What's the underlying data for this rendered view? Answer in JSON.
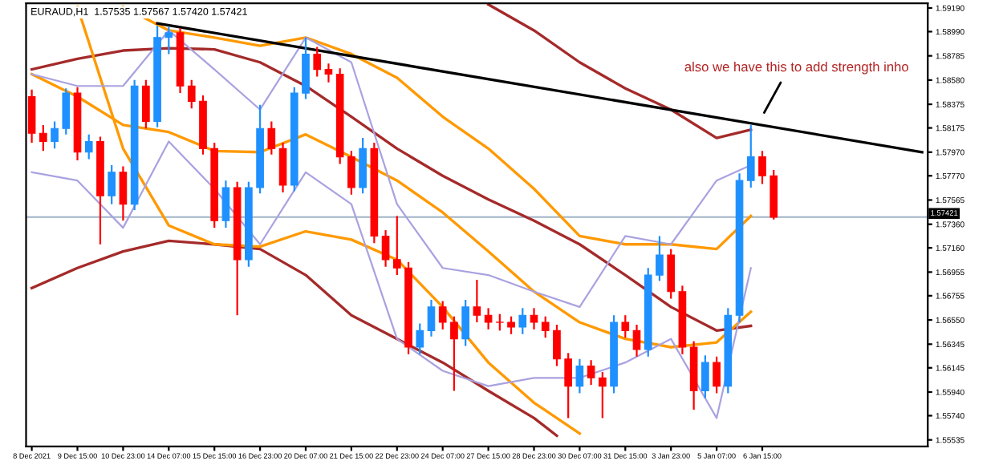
{
  "chart_data": {
    "type": "candlestick",
    "title": "EURAUD,H1  1.57535 1.57567 1.57420 1.57421",
    "categories": [
      "8 Dec 2021",
      null,
      null,
      null,
      "9 Dec 15:00",
      null,
      null,
      null,
      "10 Dec 23:00",
      null,
      null,
      null,
      "14 Dec 07:00",
      null,
      null,
      null,
      "15 Dec 15:00",
      null,
      null,
      null,
      "16 Dec 23:00",
      null,
      null,
      null,
      "20 Dec 07:00",
      null,
      null,
      null,
      "21 Dec 15:00",
      null,
      null,
      null,
      "22 Dec 23:00",
      null,
      null,
      null,
      "24 Dec 07:00",
      null,
      null,
      null,
      "27 Dec 15:00",
      null,
      null,
      null,
      "28 Dec 23:00",
      null,
      null,
      null,
      "30 Dec 07:00",
      null,
      null,
      null,
      "31 Dec 15:00",
      null,
      null,
      null,
      "3 Jan 23:00",
      null,
      null,
      null,
      "5 Jan 07:00",
      null,
      null,
      null,
      "6 Jan 15:00",
      null,
      null,
      null,
      null,
      null,
      null,
      null,
      null,
      null,
      null,
      null,
      null,
      null,
      null
    ],
    "ohlc": [
      [
        1.5844,
        1.585,
        1.5805,
        1.5813
      ],
      [
        1.5813,
        1.582,
        1.5798,
        1.5806
      ],
      [
        1.5806,
        1.5823,
        1.58,
        1.5817
      ],
      [
        1.5817,
        1.5851,
        1.5812,
        1.5847
      ],
      [
        1.5847,
        1.5852,
        1.579,
        1.5797
      ],
      [
        1.5797,
        1.5812,
        1.5791,
        1.5806
      ],
      [
        1.5806,
        1.581,
        1.5719,
        1.576
      ],
      [
        1.576,
        1.5786,
        1.5753,
        1.578
      ],
      [
        1.578,
        1.5785,
        1.5739,
        1.5753
      ],
      [
        1.5753,
        1.5858,
        1.5748,
        1.5853
      ],
      [
        1.5853,
        1.5858,
        1.5817,
        1.5823
      ],
      [
        1.5823,
        1.5904,
        1.5818,
        1.5894
      ],
      [
        1.5894,
        1.5903,
        1.588,
        1.5898
      ],
      [
        1.5898,
        1.5902,
        1.5847,
        1.5853
      ],
      [
        1.5853,
        1.5858,
        1.5834,
        1.584
      ],
      [
        1.584,
        1.5845,
        1.5795,
        1.58
      ],
      [
        1.58,
        1.5805,
        1.5733,
        1.5739
      ],
      [
        1.5739,
        1.5773,
        1.5733,
        1.5767
      ],
      [
        1.5767,
        1.5772,
        1.5659,
        1.5706
      ],
      [
        1.5706,
        1.5772,
        1.57,
        1.5767
      ],
      [
        1.5767,
        1.5837,
        1.5762,
        1.5817
      ],
      [
        1.5817,
        1.5823,
        1.5795,
        1.58
      ],
      [
        1.58,
        1.5805,
        1.5763,
        1.5769
      ],
      [
        1.5769,
        1.5852,
        1.5764,
        1.5847
      ],
      [
        1.5847,
        1.5894,
        1.5842,
        1.588
      ],
      [
        1.588,
        1.5886,
        1.5861,
        1.5867
      ],
      [
        1.5867,
        1.5872,
        1.5856,
        1.5863
      ],
      [
        1.5863,
        1.5868,
        1.5787,
        1.5793
      ],
      [
        1.5793,
        1.5798,
        1.5761,
        1.5767
      ],
      [
        1.5767,
        1.5809,
        1.5762,
        1.58
      ],
      [
        1.58,
        1.5805,
        1.572,
        1.5726
      ],
      [
        1.5726,
        1.5731,
        1.57,
        1.5706
      ],
      [
        1.5706,
        1.5743,
        1.5693,
        1.5699
      ],
      [
        1.5699,
        1.5704,
        1.5626,
        1.5632
      ],
      [
        1.5632,
        1.5652,
        1.5626,
        1.5646
      ],
      [
        1.5646,
        1.5672,
        1.5641,
        1.5666
      ],
      [
        1.5666,
        1.5671,
        1.5647,
        1.5653
      ],
      [
        1.5653,
        1.5658,
        1.5595,
        1.5639
      ],
      [
        1.5639,
        1.5672,
        1.5633,
        1.5666
      ],
      [
        1.5666,
        1.5689,
        1.5653,
        1.5659
      ],
      [
        1.5659,
        1.5665,
        1.5647,
        1.5653
      ],
      [
        1.5653,
        1.566,
        1.5646,
        1.5653
      ],
      [
        1.5653,
        1.5658,
        1.5643,
        1.5649
      ],
      [
        1.5649,
        1.5665,
        1.5643,
        1.5659
      ],
      [
        1.5659,
        1.5665,
        1.5647,
        1.5653
      ],
      [
        1.5653,
        1.5658,
        1.564,
        1.5646
      ],
      [
        1.5646,
        1.5651,
        1.5616,
        1.5622
      ],
      [
        1.5622,
        1.5627,
        1.5572,
        1.5599
      ],
      [
        1.5599,
        1.5622,
        1.5593,
        1.5616
      ],
      [
        1.5616,
        1.5621,
        1.56,
        1.5606
      ],
      [
        1.5606,
        1.5611,
        1.5572,
        1.5599
      ],
      [
        1.5599,
        1.5659,
        1.5593,
        1.5653
      ],
      [
        1.5653,
        1.5659,
        1.564,
        1.5646
      ],
      [
        1.5646,
        1.5651,
        1.5624,
        1.563
      ],
      [
        1.563,
        1.5699,
        1.5624,
        1.5693
      ],
      [
        1.5693,
        1.5726,
        1.5688,
        1.571
      ],
      [
        1.571,
        1.5715,
        1.5673,
        1.5679
      ],
      [
        1.5679,
        1.5684,
        1.5626,
        1.5632
      ],
      [
        1.5632,
        1.5637,
        1.5579,
        1.5595
      ],
      [
        1.5595,
        1.5625,
        1.5589,
        1.5619
      ],
      [
        1.5619,
        1.5624,
        1.5593,
        1.5599
      ],
      [
        1.5599,
        1.5665,
        1.5593,
        1.5659
      ],
      [
        1.5659,
        1.5779,
        1.5653,
        1.5773
      ],
      [
        1.5773,
        1.582,
        1.5767,
        1.5793
      ],
      [
        1.5793,
        1.5798,
        1.577,
        1.5777
      ],
      [
        1.5777,
        1.5782,
        1.574,
        1.5742
      ],
      null,
      null,
      null,
      null,
      null,
      null,
      null,
      null,
      null,
      null,
      null,
      null,
      null
    ],
    "colors": [
      "#ff0000",
      "#ff0000",
      "#1e90ff",
      "#1e90ff",
      "#ff0000",
      "#1e90ff",
      "#ff0000",
      "#1e90ff",
      "#ff0000",
      "#1e90ff",
      "#ff0000",
      "#1e90ff",
      "#1e90ff",
      "#ff0000",
      "#ff0000",
      "#ff0000",
      "#ff0000",
      "#1e90ff",
      "#ff0000",
      "#1e90ff",
      "#1e90ff",
      "#ff0000",
      "#ff0000",
      "#1e90ff",
      "#1e90ff",
      "#ff0000",
      "#ff0000",
      "#ff0000",
      "#ff0000",
      "#1e90ff",
      "#ff0000",
      "#ff0000",
      "#ff0000",
      "#ff0000",
      "#1e90ff",
      "#1e90ff",
      "#ff0000",
      "#ff0000",
      "#1e90ff",
      "#ff0000",
      "#ff0000",
      "#ff0000",
      "#ff0000",
      "#1e90ff",
      "#ff0000",
      "#ff0000",
      "#ff0000",
      "#ff0000",
      "#1e90ff",
      "#ff0000",
      "#ff0000",
      "#1e90ff",
      "#ff0000",
      "#ff0000",
      "#1e90ff",
      "#1e90ff",
      "#ff0000",
      "#ff0000",
      "#ff0000",
      "#1e90ff",
      "#ff0000",
      "#1e90ff",
      "#1e90ff",
      "#1e90ff",
      "#ff0000",
      "#ff0000",
      null,
      null,
      null,
      null,
      null,
      null,
      null,
      null,
      null,
      null,
      null,
      null,
      null
    ],
    "series": [
      {
        "type": "line",
        "color": "#a52a2a",
        "values": [
          1.5867,
          null,
          null,
          null,
          1.5876,
          null,
          null,
          null,
          1.5883,
          null,
          null,
          null,
          1.5885,
          null,
          null,
          null,
          1.5884,
          null,
          null,
          null,
          1.5873,
          null,
          null,
          null,
          1.5853,
          null,
          null,
          null,
          1.5827,
          null,
          null,
          null,
          1.58,
          null,
          null,
          null,
          1.5777,
          null,
          null,
          null,
          1.5757,
          null,
          null,
          null,
          1.5739,
          null,
          null,
          null,
          1.5719,
          null,
          null,
          null,
          1.5693,
          null,
          null,
          null,
          1.5666,
          null,
          null,
          null,
          1.5646,
          null,
          null,
          1.565,
          null,
          null,
          null,
          null,
          null,
          null,
          null,
          null,
          null,
          null,
          null,
          null,
          null,
          null,
          null
        ]
      },
      {
        "type": "line",
        "color": "#a52a2a",
        "values": [
          null,
          null,
          null,
          null,
          null,
          null,
          null,
          null,
          null,
          null,
          null,
          null,
          null,
          null,
          null,
          null,
          null,
          null,
          null,
          null,
          null,
          null,
          null,
          null,
          null,
          null,
          null,
          null,
          null,
          null,
          null,
          null,
          null,
          null,
          null,
          null,
          null,
          null,
          null,
          null,
          1.5922,
          null,
          null,
          null,
          1.59,
          null,
          null,
          null,
          1.5873,
          null,
          null,
          null,
          1.5851,
          null,
          null,
          null,
          1.5833,
          null,
          null,
          null,
          1.5809,
          null,
          null,
          1.5816,
          null,
          null,
          null,
          null,
          null,
          null,
          null,
          null,
          null,
          null,
          null,
          null,
          null,
          null,
          null
        ]
      },
      {
        "type": "line",
        "color": "#a52a2a",
        "values": [
          1.5682,
          null,
          null,
          null,
          1.5699,
          null,
          null,
          null,
          1.5713,
          null,
          null,
          null,
          1.5722,
          null,
          null,
          null,
          1.5719,
          null,
          null,
          null,
          1.5715,
          null,
          null,
          null,
          1.5693,
          null,
          null,
          null,
          1.5659,
          null,
          null,
          null,
          1.5639,
          null,
          null,
          null,
          1.5619,
          null,
          null,
          null,
          1.5595,
          null,
          null,
          null,
          1.5572,
          null,
          1.5557,
          null,
          null,
          null,
          null,
          null,
          null,
          null,
          null,
          null,
          null,
          null,
          null,
          null,
          null,
          null,
          null,
          null,
          null,
          null,
          null,
          null,
          null,
          null,
          null,
          null,
          null,
          null,
          null,
          null,
          null,
          null,
          null
        ]
      },
      {
        "type": "line",
        "color": "#ff9900",
        "values": [
          null,
          null,
          null,
          null,
          null,
          null,
          null,
          null,
          1.592,
          null,
          null,
          null,
          1.59,
          null,
          null,
          null,
          1.5894,
          null,
          null,
          null,
          1.5887,
          null,
          null,
          null,
          1.5894,
          null,
          null,
          null,
          1.588,
          null,
          null,
          null,
          1.586,
          null,
          null,
          null,
          1.5827,
          null,
          null,
          null,
          1.58,
          null,
          null,
          null,
          1.5766,
          null,
          null,
          null,
          1.5726,
          null,
          null,
          null,
          1.5719,
          null,
          null,
          null,
          1.5719,
          null,
          null,
          null,
          1.5715,
          null,
          null,
          1.5743,
          null,
          null,
          null,
          null,
          null,
          null,
          null,
          null,
          null,
          null,
          null,
          null,
          null,
          null,
          null
        ]
      },
      {
        "type": "line",
        "color": "#ff9900",
        "values": [
          1.5863,
          null,
          null,
          null,
          1.5844,
          null,
          null,
          null,
          1.582,
          null,
          null,
          null,
          1.5814,
          null,
          null,
          null,
          1.5798,
          null,
          null,
          null,
          1.5797,
          null,
          null,
          null,
          1.5812,
          null,
          null,
          null,
          1.5793,
          null,
          null,
          null,
          1.5773,
          null,
          null,
          null,
          1.5746,
          null,
          null,
          null,
          1.5713,
          null,
          null,
          null,
          1.5679,
          null,
          null,
          null,
          1.5653,
          null,
          null,
          null,
          1.5639,
          null,
          null,
          null,
          1.5632,
          null,
          null,
          null,
          1.5636,
          null,
          null,
          1.5662,
          null,
          null,
          null,
          null,
          null,
          null,
          null,
          null,
          null,
          null,
          null,
          null,
          null,
          null,
          null
        ]
      },
      {
        "type": "line",
        "color": "#ff9900",
        "values": [
          null,
          null,
          null,
          null,
          1.592,
          null,
          null,
          null,
          1.58,
          null,
          null,
          null,
          1.5735,
          null,
          null,
          null,
          1.5719,
          null,
          null,
          null,
          1.5717,
          null,
          null,
          null,
          1.573,
          null,
          null,
          null,
          1.5723,
          null,
          null,
          null,
          1.5706,
          null,
          null,
          null,
          1.5666,
          null,
          null,
          null,
          1.5619,
          null,
          null,
          null,
          1.5585,
          null,
          null,
          null,
          1.5559,
          null,
          null,
          null,
          null,
          null,
          null,
          null,
          null,
          null,
          null,
          null,
          null,
          null,
          null,
          null,
          null,
          null,
          null,
          null,
          null,
          null,
          null,
          null,
          null,
          null,
          null,
          null,
          null,
          null,
          null
        ]
      },
      {
        "type": "line",
        "color": "#a9a2e0",
        "values": [
          1.5863,
          null,
          null,
          null,
          1.5853,
          null,
          null,
          null,
          1.5853,
          null,
          null,
          null,
          1.59,
          null,
          null,
          null,
          1.5867,
          null,
          null,
          null,
          1.5833,
          null,
          null,
          null,
          1.5894,
          null,
          null,
          null,
          1.5873,
          null,
          null,
          null,
          1.5753,
          null,
          null,
          null,
          1.5699,
          null,
          null,
          null,
          1.5693,
          null,
          null,
          null,
          1.5679,
          null,
          null,
          null,
          1.5666,
          null,
          null,
          null,
          1.5726,
          null,
          null,
          null,
          1.5719,
          null,
          null,
          null,
          1.5773,
          null,
          null,
          1.5786,
          null,
          null,
          null,
          null,
          null,
          null,
          null,
          null,
          null,
          null,
          null,
          null,
          null,
          null,
          null
        ]
      },
      {
        "type": "line",
        "color": "#a9a2e0",
        "values": [
          1.578,
          null,
          null,
          null,
          1.5773,
          null,
          null,
          null,
          1.5733,
          null,
          null,
          null,
          1.5806,
          null,
          null,
          null,
          1.5766,
          null,
          null,
          null,
          1.5719,
          null,
          null,
          null,
          1.578,
          null,
          null,
          null,
          1.5753,
          null,
          null,
          null,
          1.5639,
          null,
          null,
          null,
          1.5612,
          null,
          null,
          null,
          1.5599,
          null,
          null,
          null,
          1.5606,
          null,
          null,
          null,
          1.5606,
          null,
          null,
          null,
          1.5619,
          null,
          null,
          null,
          1.5639,
          null,
          null,
          null,
          1.5572,
          null,
          null,
          1.5699,
          null,
          null,
          null,
          null,
          null,
          null,
          null,
          null,
          null,
          null,
          null,
          null,
          null,
          null,
          null
        ]
      },
      {
        "type": "line",
        "color": "#000000",
        "values": [
          null,
          null,
          null,
          null,
          null,
          null,
          null,
          null,
          null,
          null,
          null,
          1.5906,
          null,
          null,
          null,
          null,
          null,
          null,
          null,
          null,
          null,
          null,
          null,
          null,
          null,
          null,
          null,
          null,
          null,
          null,
          null,
          null,
          null,
          null,
          null,
          null,
          null,
          null,
          null,
          null,
          null,
          null,
          null,
          null,
          null,
          null,
          null,
          null,
          null,
          null,
          null,
          null,
          null,
          null,
          null,
          null,
          null,
          null,
          null,
          null,
          null,
          null,
          null,
          null,
          null,
          null,
          null,
          null,
          null,
          null,
          null,
          null,
          null,
          null,
          null,
          null,
          null,
          null,
          1.5797
        ]
      }
    ],
    "ylim": [
      1.5548,
      1.5923
    ],
    "yticks": [
      {
        "value": 1.5919,
        "label": "1.59190"
      },
      {
        "value": 1.5899,
        "label": "1.58990"
      },
      {
        "value": 1.58785,
        "label": "1.58785"
      },
      {
        "value": 1.5858,
        "label": "1.58580"
      },
      {
        "value": 1.58375,
        "label": "1.58375"
      },
      {
        "value": 1.58175,
        "label": "1.58175"
      },
      {
        "value": 1.5797,
        "label": "1.57970"
      },
      {
        "value": 1.5777,
        "label": "1.57770"
      },
      {
        "value": 1.57565,
        "label": "1.57565"
      },
      {
        "value": 1.5736,
        "label": "1.57360"
      },
      {
        "value": 1.5716,
        "label": "1.57160"
      },
      {
        "value": 1.56955,
        "label": "1.56955"
      },
      {
        "value": 1.56755,
        "label": "1.56755"
      },
      {
        "value": 1.5655,
        "label": "1.56550"
      },
      {
        "value": 1.56345,
        "label": "1.56345"
      },
      {
        "value": 1.56145,
        "label": "1.56145"
      },
      {
        "value": 1.5594,
        "label": "1.55940"
      },
      {
        "value": 1.5574,
        "label": "1.55740"
      },
      {
        "value": 1.55535,
        "label": "1.55535"
      }
    ],
    "ref_lines": [
      {
        "axis": "y",
        "value": 1.57421,
        "label": "1.57421",
        "color": "#a0b4c8"
      }
    ],
    "annotations": [
      "also we have this to add strength inho"
    ],
    "grid": false,
    "legend": false
  }
}
